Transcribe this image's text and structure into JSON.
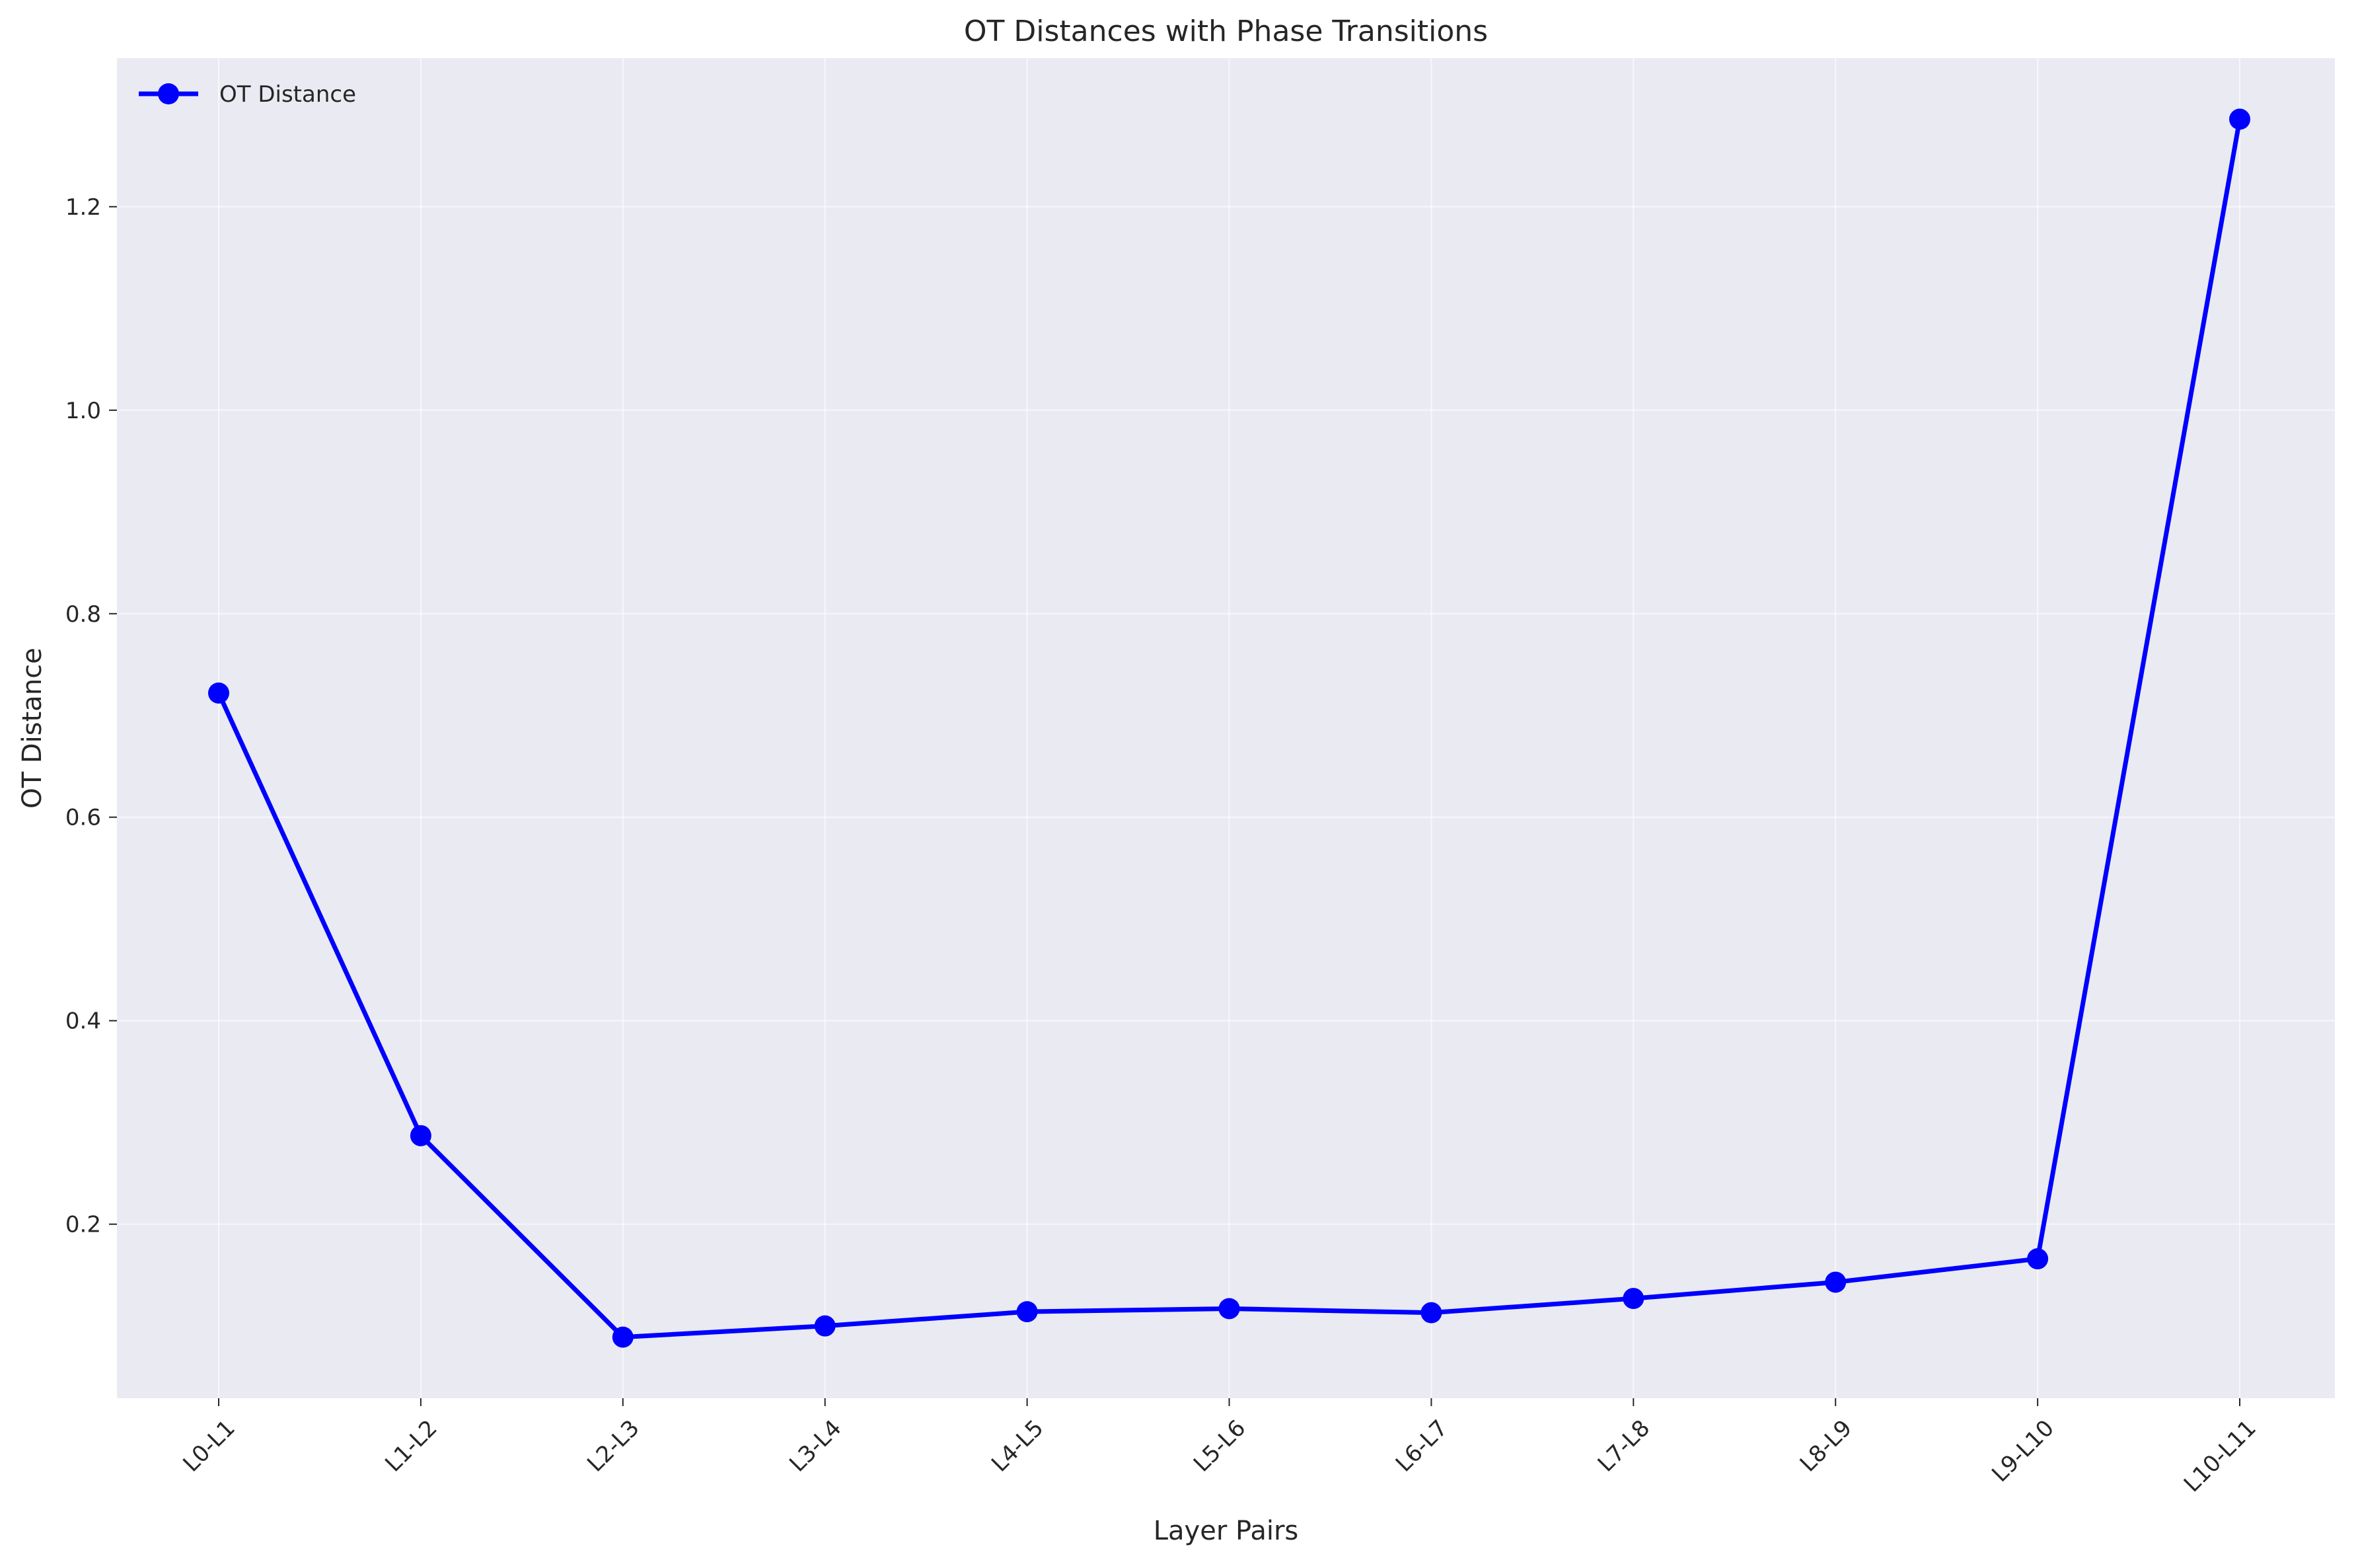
{
  "chart_data": {
    "type": "line",
    "title": "OT Distances with Phase Transitions",
    "xlabel": "Layer Pairs",
    "ylabel": "OT Distance",
    "categories": [
      "L0-L1",
      "L1-L2",
      "L2-L3",
      "L3-L4",
      "L4-L5",
      "L5-L6",
      "L6-L7",
      "L7-L8",
      "L8-L9",
      "L9-L10",
      "L10-L11"
    ],
    "series": [
      {
        "name": "OT Distance",
        "color": "#0000ff",
        "marker": "circle",
        "values": [
          0.722,
          0.287,
          0.089,
          0.1,
          0.114,
          0.117,
          0.113,
          0.127,
          0.143,
          0.166,
          1.286
        ]
      }
    ],
    "ylim": [
      0.029,
      1.346
    ],
    "yticks": [
      0.2,
      0.4,
      0.6,
      0.8,
      1.0,
      1.2
    ],
    "ytick_labels": [
      "0.2",
      "0.4",
      "0.6",
      "0.8",
      "1.0",
      "1.2"
    ],
    "grid": true,
    "legend": "top-left",
    "background_color": "#eaeaf2",
    "grid_color": "#ffffff"
  }
}
